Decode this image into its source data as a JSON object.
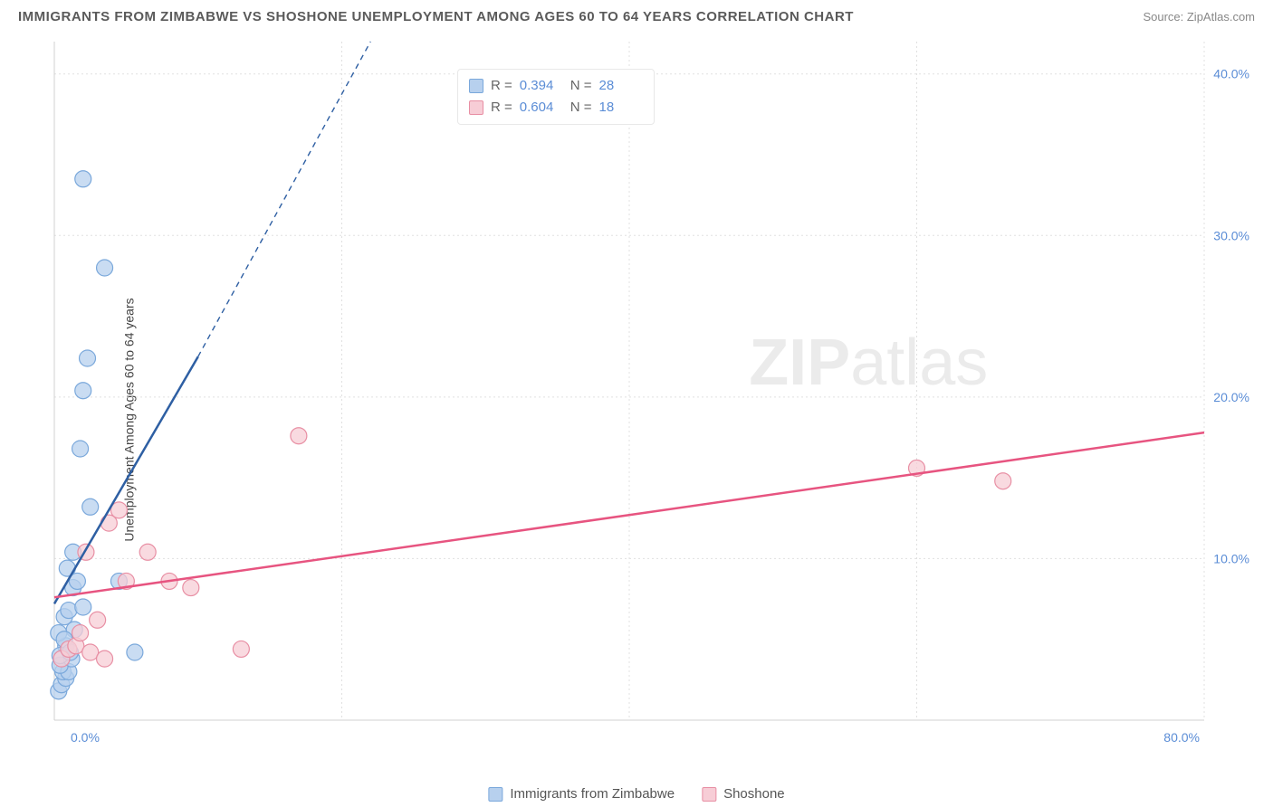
{
  "title": "IMMIGRANTS FROM ZIMBABWE VS SHOSHONE UNEMPLOYMENT AMONG AGES 60 TO 64 YEARS CORRELATION CHART",
  "source": "Source: ZipAtlas.com",
  "ylabel": "Unemployment Among Ages 60 to 64 years",
  "watermark": {
    "a": "ZIP",
    "b": "atlas"
  },
  "chart": {
    "type": "scatter",
    "background_color": "#ffffff",
    "grid_color": "#e0e0e0",
    "axis_color": "#d0d0d0",
    "title_color": "#5a5a5a",
    "tick_color": "#5b8dd6",
    "label_fontsize": 14,
    "title_fontsize": 15,
    "tick_fontsize": 14,
    "xlim": [
      0,
      80
    ],
    "ylim": [
      0,
      42
    ],
    "xticks": [
      {
        "v": 0,
        "l": "0.0%"
      },
      {
        "v": 80,
        "l": "80.0%"
      }
    ],
    "yticks": [
      {
        "v": 10,
        "l": "10.0%"
      },
      {
        "v": 20,
        "l": "20.0%"
      },
      {
        "v": 30,
        "l": "30.0%"
      },
      {
        "v": 40,
        "l": "40.0%"
      }
    ],
    "x_gridlines": [
      20,
      40,
      60,
      80
    ],
    "marker_radius": 9,
    "marker_stroke_width": 1.2,
    "line_width": 2.5,
    "series": [
      {
        "name": "Immigrants from Zimbabwe",
        "color_fill": "#b7d0ee",
        "color_stroke": "#7aa8db",
        "line_color": "#2e5fa3",
        "R": "0.394",
        "N": "28",
        "points": [
          [
            0.3,
            1.8
          ],
          [
            0.5,
            2.2
          ],
          [
            0.8,
            2.6
          ],
          [
            0.6,
            3.0
          ],
          [
            1.0,
            3.0
          ],
          [
            0.4,
            3.4
          ],
          [
            1.2,
            3.8
          ],
          [
            0.8,
            4.6
          ],
          [
            0.3,
            5.4
          ],
          [
            1.4,
            5.6
          ],
          [
            0.7,
            6.4
          ],
          [
            1.0,
            6.8
          ],
          [
            2.0,
            7.0
          ],
          [
            1.3,
            8.2
          ],
          [
            1.6,
            8.6
          ],
          [
            4.5,
            8.6
          ],
          [
            0.9,
            9.4
          ],
          [
            1.3,
            10.4
          ],
          [
            2.5,
            13.2
          ],
          [
            1.8,
            16.8
          ],
          [
            2.0,
            20.4
          ],
          [
            2.3,
            22.4
          ],
          [
            3.5,
            28.0
          ],
          [
            2.0,
            33.5
          ],
          [
            0.4,
            4.0
          ],
          [
            0.7,
            5.0
          ],
          [
            1.1,
            4.2
          ],
          [
            5.6,
            4.2
          ]
        ],
        "trend": {
          "x1": 0,
          "y1": 7.2,
          "x2": 10,
          "y2": 22.5,
          "dash_x2": 22,
          "dash_y2": 42
        }
      },
      {
        "name": "Shoshone",
        "color_fill": "#f7cdd6",
        "color_stroke": "#e88fa4",
        "line_color": "#e75480",
        "R": "0.604",
        "N": "18",
        "points": [
          [
            0.5,
            3.8
          ],
          [
            1.0,
            4.4
          ],
          [
            1.5,
            4.6
          ],
          [
            2.5,
            4.2
          ],
          [
            3.5,
            3.8
          ],
          [
            3.0,
            6.2
          ],
          [
            5.0,
            8.6
          ],
          [
            6.5,
            10.4
          ],
          [
            8.0,
            8.6
          ],
          [
            9.5,
            8.2
          ],
          [
            13.0,
            4.4
          ],
          [
            2.2,
            10.4
          ],
          [
            3.8,
            12.2
          ],
          [
            4.5,
            13.0
          ],
          [
            17.0,
            17.6
          ],
          [
            60.0,
            15.6
          ],
          [
            66.0,
            14.8
          ],
          [
            1.8,
            5.4
          ]
        ],
        "trend": {
          "x1": 0,
          "y1": 7.6,
          "x2": 80,
          "y2": 17.8
        }
      }
    ]
  },
  "stats_box": {
    "rows": [
      {
        "swatch_fill": "#b7d0ee",
        "swatch_stroke": "#7aa8db",
        "R": "0.394",
        "N": "28"
      },
      {
        "swatch_fill": "#f7cdd6",
        "swatch_stroke": "#e88fa4",
        "R": "0.604",
        "N": "18"
      }
    ],
    "labels": {
      "R": "R =",
      "N": "N ="
    }
  },
  "legend": [
    {
      "swatch_fill": "#b7d0ee",
      "swatch_stroke": "#7aa8db",
      "label": "Immigrants from Zimbabwe"
    },
    {
      "swatch_fill": "#f7cdd6",
      "swatch_stroke": "#e88fa4",
      "label": "Shoshone"
    }
  ]
}
